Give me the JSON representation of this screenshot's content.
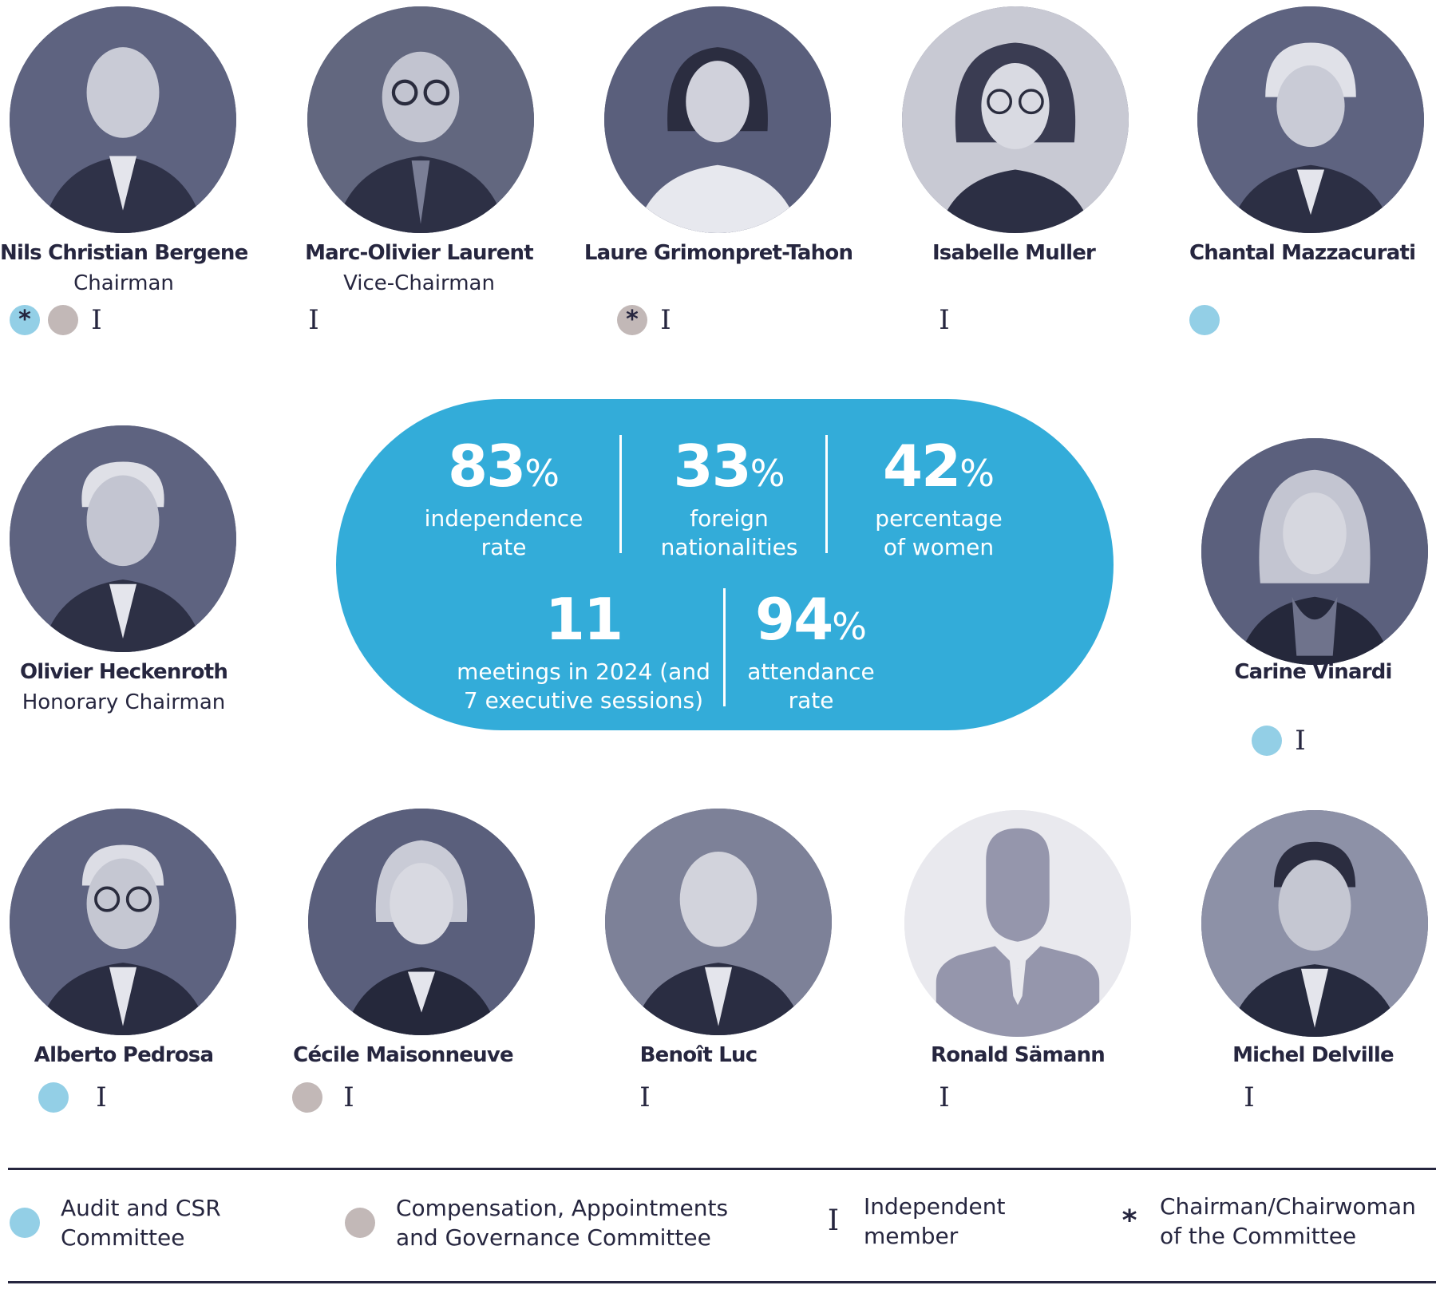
{
  "colors": {
    "audit_committee": "#93cfe6",
    "compensation_committee": "#c2b8b7",
    "stats_background": "#33acd9",
    "text": "#26263f"
  },
  "board": {
    "top_row": [
      {
        "name": "Nils Christian Bergene",
        "role": "Chairman",
        "badges": [
          "audit-chair",
          "compensation",
          "independent"
        ]
      },
      {
        "name": "Marc-Olivier Laurent",
        "role": "Vice-Chairman",
        "badges": [
          "independent"
        ]
      },
      {
        "name": "Laure Grimonpret-Tahon",
        "role": "",
        "badges": [
          "compensation-chair",
          "independent"
        ]
      },
      {
        "name": "Isabelle Muller",
        "role": "",
        "badges": [
          "independent"
        ]
      },
      {
        "name": "Chantal Mazzacurati",
        "role": "",
        "badges": [
          "audit"
        ]
      }
    ],
    "middle_row": [
      {
        "name": "Olivier Heckenroth",
        "role": "Honorary Chairman",
        "badges": []
      },
      {
        "name": "Carine Vinardi",
        "role": "",
        "badges": [
          "audit",
          "independent"
        ]
      }
    ],
    "bottom_row": [
      {
        "name": "Alberto Pedrosa",
        "role": "",
        "badges": [
          "audit",
          "independent"
        ]
      },
      {
        "name": "Cécile Maisonneuve",
        "role": "",
        "badges": [
          "compensation",
          "independent"
        ]
      },
      {
        "name": "Benoît Luc",
        "role": "",
        "badges": [
          "independent"
        ]
      },
      {
        "name": "Ronald Sämann",
        "role": "",
        "badges": [
          "independent"
        ]
      },
      {
        "name": "Michel Delville",
        "role": "",
        "badges": [
          "independent"
        ]
      }
    ]
  },
  "stats": {
    "independence": {
      "value": "83",
      "unit": "%",
      "label1": "independence",
      "label2": "rate"
    },
    "foreign": {
      "value": "33",
      "unit": "%",
      "label1": "foreign",
      "label2": "nationalities"
    },
    "women": {
      "value": "42",
      "unit": "%",
      "label1": "percentage",
      "label2": "of women"
    },
    "meetings": {
      "value": "11",
      "unit": "",
      "label1": "meetings in 2024 (and",
      "label2": "7 executive sessions)"
    },
    "attendance": {
      "value": "94",
      "unit": "%",
      "label1": "attendance",
      "label2": "rate"
    }
  },
  "legend": {
    "audit": {
      "line1": "Audit and CSR",
      "line2": "Committee"
    },
    "compensation": {
      "line1": "Compensation, Appointments",
      "line2": "and Governance Committee"
    },
    "independent": {
      "symbol": "I",
      "line1": "Independent",
      "line2": "member"
    },
    "chair": {
      "symbol": "*",
      "line1": "Chairman/Chairwoman",
      "line2": "of the Committee"
    }
  },
  "icons": {
    "independent": "I-beam-glyph",
    "chair": "asterisk-glyph",
    "placeholder": "person-silhouette-icon"
  }
}
